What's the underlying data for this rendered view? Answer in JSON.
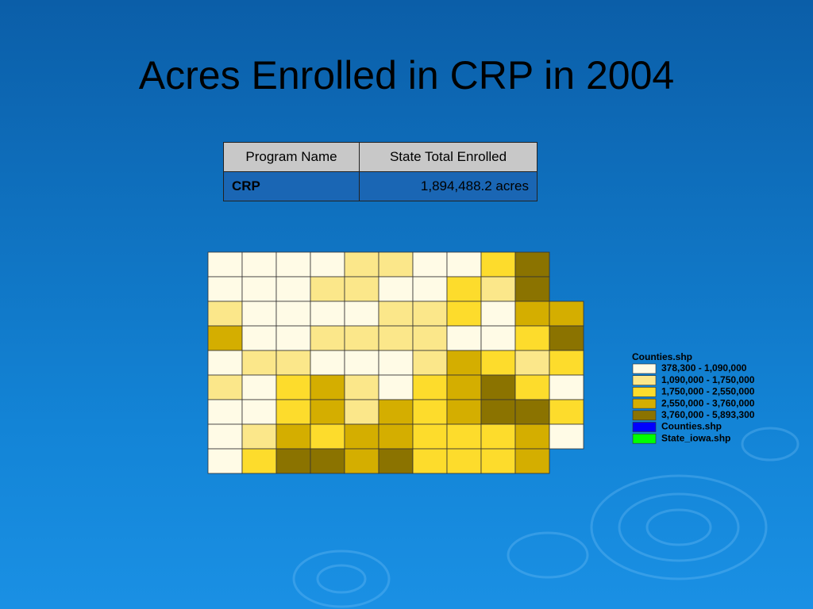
{
  "title": "Acres Enrolled in CRP in 2004",
  "table": {
    "header": [
      "Program Name",
      "State Total Enrolled"
    ],
    "rows": [
      [
        "CRP",
        "1,894,488.2 acres"
      ]
    ]
  },
  "legend": {
    "title": "Counties.shp",
    "entries": [
      {
        "label": "378,300 - 1,090,000",
        "color": "#fffbe6"
      },
      {
        "label": "1,090,000 - 1,750,000",
        "color": "#fbe78a"
      },
      {
        "label": "1,750,000 - 2,550,000",
        "color": "#fddc2c"
      },
      {
        "label": "2,550,000 - 3,760,000",
        "color": "#d4ae00"
      },
      {
        "label": "3,760,000 - 5,893,300",
        "color": "#8b7300"
      },
      {
        "label": "Counties.shp",
        "color": "#0000ff"
      },
      {
        "label": "State_iowa.shp",
        "color": "#00ff00"
      }
    ]
  }
}
